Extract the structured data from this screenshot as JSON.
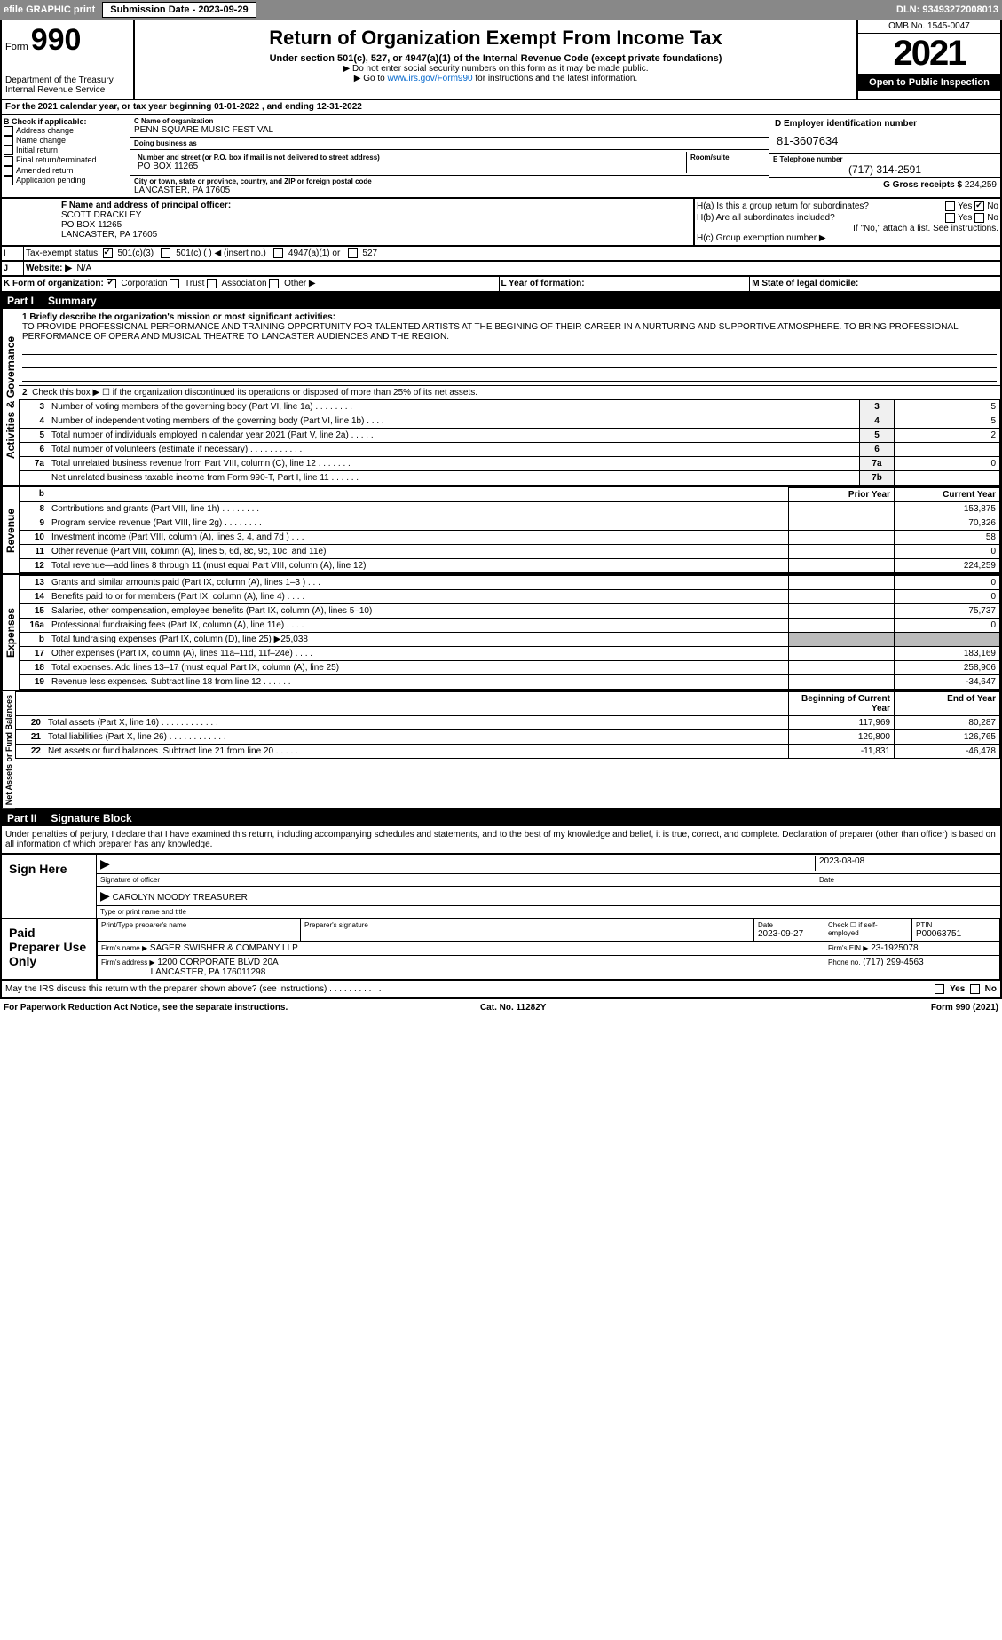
{
  "efile": {
    "label": "efile GRAPHIC print",
    "submission_label": "Submission Date - 2023-09-29",
    "dln_label": "DLN: 93493272008013"
  },
  "header": {
    "form_label": "Form",
    "form_number": "990",
    "title": "Return of Organization Exempt From Income Tax",
    "subtitle": "Under section 501(c), 527, or 4947(a)(1) of the Internal Revenue Code (except private foundations)",
    "note1": "▶ Do not enter social security numbers on this form as it may be made public.",
    "note2_pre": "▶ Go to ",
    "note2_link": "www.irs.gov/Form990",
    "note2_post": " for instructions and the latest information.",
    "dept": "Department of the Treasury",
    "irs": "Internal Revenue Service",
    "omb": "OMB No. 1545-0047",
    "year": "2021",
    "open": "Open to Public Inspection"
  },
  "A": {
    "text": "For the 2021 calendar year, or tax year beginning 01-01-2022    , and ending 12-31-2022"
  },
  "B": {
    "label": "B Check if applicable:",
    "items": [
      "Address change",
      "Name change",
      "Initial return",
      "Final return/terminated",
      "Amended return",
      "Application pending"
    ]
  },
  "C": {
    "name_label": "C Name of organization",
    "name": "PENN SQUARE MUSIC FESTIVAL",
    "dba_label": "Doing business as",
    "dba": "",
    "street_label": "Number and street (or P.O. box if mail is not delivered to street address)",
    "room_label": "Room/suite",
    "street": "PO BOX 11265",
    "city_label": "City or town, state or province, country, and ZIP or foreign postal code",
    "city": "LANCASTER, PA  17605"
  },
  "D": {
    "label": "D Employer identification number",
    "value": "81-3607634"
  },
  "E": {
    "label": "E Telephone number",
    "value": "(717) 314-2591"
  },
  "G": {
    "label": "G Gross receipts $",
    "value": "224,259"
  },
  "F": {
    "label": "F  Name and address of principal officer:",
    "name": "SCOTT DRACKLEY",
    "addr1": "PO BOX 11265",
    "addr2": "LANCASTER, PA  17605"
  },
  "H": {
    "a_label": "H(a)  Is this a group return for subordinates?",
    "a_yes": "Yes",
    "a_no": "No",
    "a_checkedNo": true,
    "b_label": "H(b)  Are all subordinates included?",
    "b_yes": "Yes",
    "b_no": "No",
    "b_note": "If \"No,\" attach a list. See instructions.",
    "c_label": "H(c)  Group exemption number ▶"
  },
  "I": {
    "label": "Tax-exempt status:",
    "opts": [
      "501(c)(3)",
      "501(c) (   ) ◀ (insert no.)",
      "4947(a)(1) or",
      "527"
    ],
    "checked": 0
  },
  "J": {
    "label": "Website: ▶",
    "value": "N/A"
  },
  "K": {
    "label": "K Form of organization:",
    "opts": [
      "Corporation",
      "Trust",
      "Association",
      "Other ▶"
    ],
    "checked": 0
  },
  "L": {
    "label": "L Year of formation:",
    "value": ""
  },
  "M": {
    "label": "M State of legal domicile:",
    "value": ""
  },
  "part1": {
    "header_pn": "Part I",
    "header_t": "Summary",
    "line1_label": "1  Briefly describe the organization's mission or most significant activities:",
    "mission": "TO PROVIDE PROFESSIONAL PERFORMANCE AND TRAINING OPPORTUNITY FOR TALENTED ARTISTS AT THE BEGINING OF THEIR CAREER IN A NURTURING AND SUPPORTIVE ATMOSPHERE. TO BRING PROFESSIONAL PERFORMANCE OF OPERA AND MUSICAL THEATRE TO LANCASTER AUDIENCES AND THE REGION.",
    "line2": "Check this box ▶ ☐ if the organization discontinued its operations or disposed of more than 25% of its net assets.",
    "side_gov": "Activities & Governance",
    "side_rev": "Revenue",
    "side_exp": "Expenses",
    "side_net": "Net Assets or Fund Balances",
    "gov_rows": [
      {
        "n": "3",
        "d": "Number of voting members of the governing body (Part VI, line 1a)   .    .    .    .    .    .    .    .",
        "ln": "3",
        "v": "5"
      },
      {
        "n": "4",
        "d": "Number of independent voting members of the governing body (Part VI, line 1b)    .    .    .    .",
        "ln": "4",
        "v": "5"
      },
      {
        "n": "5",
        "d": "Total number of individuals employed in calendar year 2021 (Part V, line 2a)   .    .    .    .    .",
        "ln": "5",
        "v": "2"
      },
      {
        "n": "6",
        "d": "Total number of volunteers (estimate if necessary)    .    .    .    .    .    .    .    .    .    .    .",
        "ln": "6",
        "v": ""
      },
      {
        "n": "7a",
        "d": "Total unrelated business revenue from Part VIII, column (C), line 12   .    .    .    .    .    .    .",
        "ln": "7a",
        "v": "0"
      },
      {
        "n": "",
        "d": "Net unrelated business taxable income from Form 990-T, Part I, line 11    .    .    .    .    .    .",
        "ln": "7b",
        "v": ""
      }
    ],
    "col_prior": "Prior Year",
    "col_curr": "Current Year",
    "rev_rows": [
      {
        "n": "8",
        "d": "Contributions and grants (Part VIII, line 1h)    .    .    .    .    .    .    .    .",
        "p": "",
        "c": "153,875"
      },
      {
        "n": "9",
        "d": "Program service revenue (Part VIII, line 2g)    .    .    .    .    .    .    .    .",
        "p": "",
        "c": "70,326"
      },
      {
        "n": "10",
        "d": "Investment income (Part VIII, column (A), lines 3, 4, and 7d )    .    .    .",
        "p": "",
        "c": "58"
      },
      {
        "n": "11",
        "d": "Other revenue (Part VIII, column (A), lines 5, 6d, 8c, 9c, 10c, and 11e)",
        "p": "",
        "c": "0"
      },
      {
        "n": "12",
        "d": "Total revenue—add lines 8 through 11 (must equal Part VIII, column (A), line 12)",
        "p": "",
        "c": "224,259"
      }
    ],
    "exp_rows": [
      {
        "n": "13",
        "d": "Grants and similar amounts paid (Part IX, column (A), lines 1–3 )   .    .    .",
        "p": "",
        "c": "0"
      },
      {
        "n": "14",
        "d": "Benefits paid to or for members (Part IX, column (A), line 4)   .    .    .    .",
        "p": "",
        "c": "0"
      },
      {
        "n": "15",
        "d": "Salaries, other compensation, employee benefits (Part IX, column (A), lines 5–10)",
        "p": "",
        "c": "75,737"
      },
      {
        "n": "16a",
        "d": "Professional fundraising fees (Part IX, column (A), line 11e)   .    .    .    .",
        "p": "",
        "c": "0"
      },
      {
        "n": "b",
        "d": "Total fundraising expenses (Part IX, column (D), line 25) ▶25,038",
        "p": "shade",
        "c": "shade"
      },
      {
        "n": "17",
        "d": "Other expenses (Part IX, column (A), lines 11a–11d, 11f–24e)   .    .    .    .",
        "p": "",
        "c": "183,169"
      },
      {
        "n": "18",
        "d": "Total expenses. Add lines 13–17 (must equal Part IX, column (A), line 25)",
        "p": "",
        "c": "258,906"
      },
      {
        "n": "19",
        "d": "Revenue less expenses. Subtract line 18 from line 12   .    .    .    .    .    .",
        "p": "",
        "c": "-34,647"
      }
    ],
    "col_beg": "Beginning of Current Year",
    "col_end": "End of Year",
    "net_rows": [
      {
        "n": "20",
        "d": "Total assets (Part X, line 16)   .    .    .    .    .    .    .    .    .    .    .    .",
        "p": "117,969",
        "c": "80,287"
      },
      {
        "n": "21",
        "d": "Total liabilities (Part X, line 26)   .    .    .    .    .    .    .    .    .    .    .    .",
        "p": "129,800",
        "c": "126,765"
      },
      {
        "n": "22",
        "d": "Net assets or fund balances. Subtract line 21 from line 20   .    .    .    .    .",
        "p": "-11,831",
        "c": "-46,478"
      }
    ]
  },
  "part2": {
    "header_pn": "Part II",
    "header_t": "Signature Block",
    "decl": "Under penalties of perjury, I declare that I have examined this return, including accompanying schedules and statements, and to the best of my knowledge and belief, it is true, correct, and complete. Declaration of preparer (other than officer) is based on all information of which preparer has any knowledge.",
    "sign_here": "Sign Here",
    "sig_date": "2023-08-08",
    "sig_officer_label": "Signature of officer",
    "date_label": "Date",
    "officer_name": "CAROLYN MOODY TREASURER",
    "officer_name_label": "Type or print name and title",
    "paid": "Paid Preparer Use Only",
    "prep_name_label": "Print/Type preparer's name",
    "prep_sig_label": "Preparer's signature",
    "prep_date_label": "Date",
    "prep_date": "2023-09-27",
    "check_self": "Check ☐ if self-employed",
    "ptin_label": "PTIN",
    "ptin": "P00063751",
    "firm_name_label": "Firm's name    ▶",
    "firm_name": "SAGER SWISHER & COMPANY LLP",
    "firm_ein_label": "Firm's EIN ▶",
    "firm_ein": "23-1925078",
    "firm_addr_label": "Firm's address ▶",
    "firm_addr": "1200 CORPORATE BLVD 20A",
    "firm_addr2": "LANCASTER, PA  176011298",
    "phone_label": "Phone no.",
    "phone": "(717) 299-4563",
    "may_irs": "May the IRS discuss this return with the preparer shown above? (see instructions)    .    .    .    .    .    .    .    .    .    .    .",
    "yes": "Yes",
    "no": "No"
  },
  "footer": {
    "pra": "For Paperwork Reduction Act Notice, see the separate instructions.",
    "cat": "Cat. No. 11282Y",
    "form": "Form 990 (2021)"
  }
}
